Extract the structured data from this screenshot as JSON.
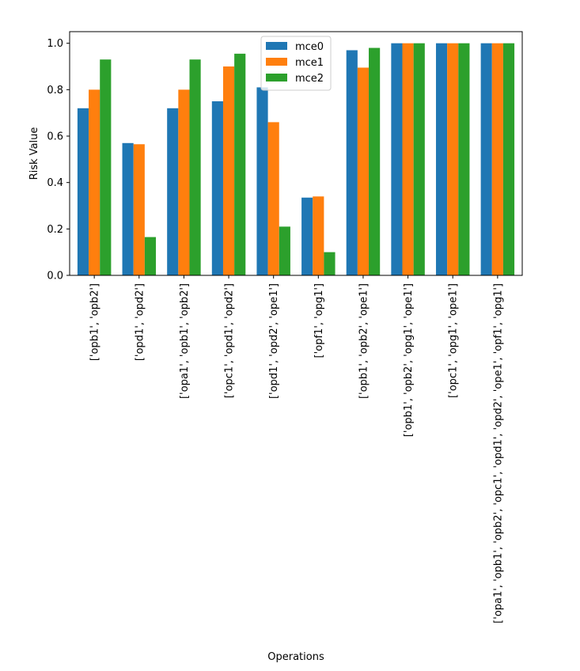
{
  "chart_data": {
    "type": "bar",
    "title": "",
    "xlabel": "Operations",
    "ylabel": "Risk Value",
    "ylim": [
      0,
      1.05
    ],
    "yticks": [
      0.0,
      0.2,
      0.4,
      0.6,
      0.8,
      1.0
    ],
    "ytick_labels": [
      "0.0",
      "0.2",
      "0.4",
      "0.6",
      "0.8",
      "1.0"
    ],
    "categories": [
      "['opb1', 'opb2']",
      "['opd1', 'opd2']",
      "['opa1', 'opb1', 'opb2']",
      "['opc1', 'opd1', 'opd2']",
      "['opd1', 'opd2', 'ope1']",
      "['opf1', 'opg1']",
      "['opb1', 'opb2', 'ope1']",
      "['opb1', 'opb2', 'opg1', 'ope1']",
      "['opc1', 'opg1', 'ope1']",
      "['opa1', 'opb1', 'opb2', 'opc1', 'opd1', 'opd2', 'ope1', 'opf1', 'opg1']"
    ],
    "series": [
      {
        "name": "mce0",
        "color": "#1f77b4",
        "values": [
          0.72,
          0.57,
          0.72,
          0.75,
          0.81,
          0.335,
          0.97,
          1.0,
          1.0,
          1.0
        ]
      },
      {
        "name": "mce1",
        "color": "#ff7f0e",
        "values": [
          0.8,
          0.565,
          0.8,
          0.9,
          0.66,
          0.34,
          0.895,
          1.0,
          1.0,
          1.0
        ]
      },
      {
        "name": "mce2",
        "color": "#2ca02c",
        "values": [
          0.93,
          0.165,
          0.93,
          0.955,
          0.21,
          0.1,
          0.98,
          1.0,
          1.0,
          1.0
        ]
      }
    ],
    "legend_position": "top-center",
    "grid": false
  }
}
